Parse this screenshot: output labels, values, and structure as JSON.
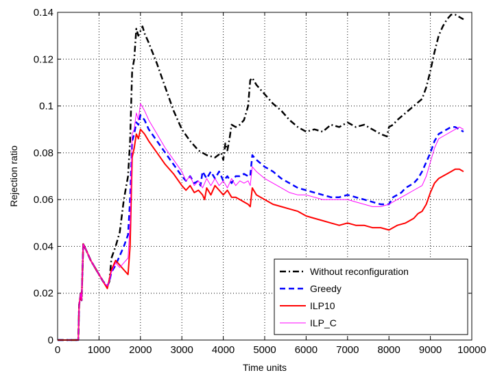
{
  "chart_data": {
    "type": "line",
    "title": "",
    "xlabel": "Time units",
    "ylabel": "Rejection ratio",
    "xlim": [
      0,
      10000
    ],
    "ylim": [
      0,
      0.14
    ],
    "xticks": [
      0,
      1000,
      2000,
      3000,
      4000,
      5000,
      6000,
      7000,
      8000,
      9000,
      10000
    ],
    "yticks": [
      0,
      0.02,
      0.04,
      0.06,
      0.08,
      0.1,
      0.12,
      0.14
    ],
    "xtick_labels": [
      "0",
      "1000",
      "2000",
      "3000",
      "4000",
      "5000",
      "6000",
      "7000",
      "8000",
      "9000",
      "10000"
    ],
    "ytick_labels": [
      "0",
      "0.02",
      "0.04",
      "0.06",
      "0.08",
      "0.1",
      "0.12",
      "0.14"
    ],
    "grid": true,
    "legend_position": "bottom-right",
    "series": [
      {
        "name": "Without reconfiguration",
        "color": "#000000",
        "style": "dashdot",
        "x": [
          0,
          500,
          520,
          560,
          580,
          620,
          700,
          800,
          900,
          1000,
          1100,
          1200,
          1250,
          1300,
          1400,
          1500,
          1600,
          1700,
          1750,
          1800,
          1850,
          1900,
          1950,
          2000,
          2050,
          2100,
          2200,
          2400,
          2600,
          2800,
          3000,
          3200,
          3400,
          3600,
          3800,
          3950,
          4000,
          4050,
          4100,
          4150,
          4200,
          4300,
          4400,
          4500,
          4600,
          4650,
          4700,
          4800,
          5000,
          5200,
          5400,
          5600,
          5800,
          6000,
          6200,
          6400,
          6600,
          6800,
          7000,
          7200,
          7400,
          7600,
          7800,
          7950,
          8000,
          8100,
          8200,
          8400,
          8600,
          8800,
          8900,
          9000,
          9100,
          9200,
          9300,
          9400,
          9500,
          9600,
          9700,
          9800
        ],
        "y": [
          0,
          0,
          0.015,
          0.02,
          0.017,
          0.041,
          0.038,
          0.034,
          0.031,
          0.028,
          0.025,
          0.023,
          0.025,
          0.035,
          0.04,
          0.046,
          0.06,
          0.07,
          0.085,
          0.115,
          0.12,
          0.133,
          0.13,
          0.132,
          0.134,
          0.131,
          0.127,
          0.118,
          0.108,
          0.098,
          0.09,
          0.085,
          0.081,
          0.079,
          0.078,
          0.08,
          0.077,
          0.084,
          0.081,
          0.086,
          0.092,
          0.091,
          0.092,
          0.094,
          0.1,
          0.111,
          0.112,
          0.109,
          0.105,
          0.101,
          0.098,
          0.094,
          0.091,
          0.089,
          0.09,
          0.089,
          0.092,
          0.091,
          0.093,
          0.091,
          0.092,
          0.09,
          0.088,
          0.087,
          0.091,
          0.092,
          0.094,
          0.097,
          0.1,
          0.103,
          0.108,
          0.115,
          0.123,
          0.13,
          0.134,
          0.137,
          0.139,
          0.139,
          0.138,
          0.137
        ]
      },
      {
        "name": "Greedy",
        "color": "#0000ff",
        "style": "dashed",
        "x": [
          0,
          500,
          520,
          560,
          580,
          620,
          700,
          800,
          900,
          1000,
          1100,
          1200,
          1250,
          1300,
          1400,
          1500,
          1600,
          1700,
          1750,
          1800,
          1850,
          1900,
          1950,
          2000,
          2100,
          2200,
          2400,
          2600,
          2800,
          3000,
          3100,
          3200,
          3300,
          3400,
          3450,
          3500,
          3600,
          3700,
          3800,
          3900,
          4000,
          4100,
          4200,
          4300,
          4400,
          4500,
          4600,
          4650,
          4700,
          4800,
          5000,
          5200,
          5400,
          5600,
          5800,
          6000,
          6200,
          6400,
          6600,
          6800,
          7000,
          7200,
          7400,
          7600,
          7800,
          8000,
          8100,
          8200,
          8300,
          8400,
          8500,
          8600,
          8700,
          8800,
          8900,
          9000,
          9100,
          9200,
          9300,
          9400,
          9500,
          9600,
          9700,
          9800
        ],
        "y": [
          0,
          0,
          0.015,
          0.02,
          0.017,
          0.041,
          0.038,
          0.034,
          0.031,
          0.028,
          0.025,
          0.023,
          0.025,
          0.029,
          0.032,
          0.036,
          0.04,
          0.045,
          0.06,
          0.085,
          0.088,
          0.093,
          0.092,
          0.096,
          0.094,
          0.09,
          0.085,
          0.08,
          0.075,
          0.07,
          0.068,
          0.07,
          0.067,
          0.068,
          0.066,
          0.072,
          0.069,
          0.072,
          0.069,
          0.072,
          0.068,
          0.07,
          0.067,
          0.07,
          0.07,
          0.071,
          0.07,
          0.07,
          0.079,
          0.077,
          0.074,
          0.072,
          0.069,
          0.067,
          0.065,
          0.064,
          0.063,
          0.062,
          0.061,
          0.061,
          0.062,
          0.061,
          0.06,
          0.059,
          0.058,
          0.058,
          0.061,
          0.062,
          0.063,
          0.065,
          0.066,
          0.067,
          0.069,
          0.072,
          0.076,
          0.08,
          0.085,
          0.088,
          0.089,
          0.09,
          0.091,
          0.091,
          0.09,
          0.089
        ]
      },
      {
        "name": "ILP10",
        "color": "#ff0000",
        "style": "solid",
        "x": [
          0,
          500,
          520,
          560,
          580,
          620,
          700,
          800,
          900,
          1000,
          1100,
          1200,
          1250,
          1300,
          1400,
          1500,
          1600,
          1700,
          1750,
          1800,
          1850,
          1900,
          1950,
          2000,
          2100,
          2200,
          2400,
          2600,
          2800,
          3000,
          3100,
          3200,
          3300,
          3400,
          3500,
          3550,
          3600,
          3700,
          3800,
          3900,
          4000,
          4100,
          4200,
          4300,
          4400,
          4500,
          4600,
          4650,
          4700,
          4800,
          5000,
          5200,
          5400,
          5600,
          5800,
          6000,
          6200,
          6400,
          6600,
          6800,
          7000,
          7200,
          7400,
          7600,
          7800,
          8000,
          8200,
          8400,
          8600,
          8700,
          8800,
          8900,
          9000,
          9100,
          9200,
          9300,
          9400,
          9500,
          9600,
          9700,
          9800
        ],
        "y": [
          0,
          0,
          0.015,
          0.02,
          0.017,
          0.041,
          0.038,
          0.034,
          0.031,
          0.028,
          0.025,
          0.022,
          0.026,
          0.03,
          0.034,
          0.032,
          0.03,
          0.028,
          0.04,
          0.078,
          0.082,
          0.088,
          0.086,
          0.09,
          0.088,
          0.085,
          0.08,
          0.075,
          0.071,
          0.066,
          0.064,
          0.066,
          0.063,
          0.064,
          0.062,
          0.06,
          0.065,
          0.062,
          0.066,
          0.064,
          0.062,
          0.064,
          0.061,
          0.061,
          0.06,
          0.059,
          0.058,
          0.057,
          0.065,
          0.062,
          0.06,
          0.058,
          0.057,
          0.056,
          0.055,
          0.053,
          0.052,
          0.051,
          0.05,
          0.049,
          0.05,
          0.049,
          0.049,
          0.048,
          0.048,
          0.047,
          0.049,
          0.05,
          0.052,
          0.054,
          0.055,
          0.058,
          0.063,
          0.067,
          0.069,
          0.07,
          0.071,
          0.072,
          0.073,
          0.073,
          0.072
        ]
      },
      {
        "name": "ILP_C",
        "color": "#ff00ff",
        "style": "solid",
        "x": [
          0,
          500,
          520,
          560,
          580,
          620,
          700,
          800,
          900,
          1000,
          1100,
          1200,
          1250,
          1300,
          1400,
          1500,
          1600,
          1700,
          1750,
          1800,
          1850,
          1900,
          1950,
          2000,
          2100,
          2200,
          2400,
          2600,
          2800,
          3000,
          3100,
          3200,
          3300,
          3400,
          3500,
          3600,
          3700,
          3800,
          3900,
          4000,
          4100,
          4200,
          4300,
          4400,
          4500,
          4600,
          4650,
          4700,
          4800,
          5000,
          5200,
          5400,
          5600,
          5800,
          6000,
          6200,
          6400,
          6600,
          6800,
          7000,
          7200,
          7400,
          7600,
          7800,
          8000,
          8200,
          8400,
          8600,
          8800,
          8900,
          9000,
          9100,
          9200,
          9300,
          9400,
          9500,
          9600,
          9700,
          9800
        ],
        "y": [
          0,
          0,
          0.015,
          0.02,
          0.017,
          0.041,
          0.038,
          0.034,
          0.031,
          0.028,
          0.025,
          0.023,
          0.025,
          0.029,
          0.033,
          0.031,
          0.033,
          0.035,
          0.05,
          0.088,
          0.09,
          0.097,
          0.094,
          0.101,
          0.098,
          0.094,
          0.088,
          0.082,
          0.077,
          0.072,
          0.068,
          0.07,
          0.066,
          0.068,
          0.065,
          0.069,
          0.066,
          0.069,
          0.066,
          0.068,
          0.065,
          0.069,
          0.066,
          0.068,
          0.067,
          0.068,
          0.066,
          0.074,
          0.072,
          0.069,
          0.067,
          0.065,
          0.063,
          0.062,
          0.062,
          0.061,
          0.06,
          0.06,
          0.06,
          0.06,
          0.059,
          0.058,
          0.057,
          0.057,
          0.058,
          0.06,
          0.062,
          0.064,
          0.066,
          0.07,
          0.076,
          0.082,
          0.086,
          0.087,
          0.088,
          0.089,
          0.09,
          0.091,
          0.09
        ]
      }
    ]
  }
}
